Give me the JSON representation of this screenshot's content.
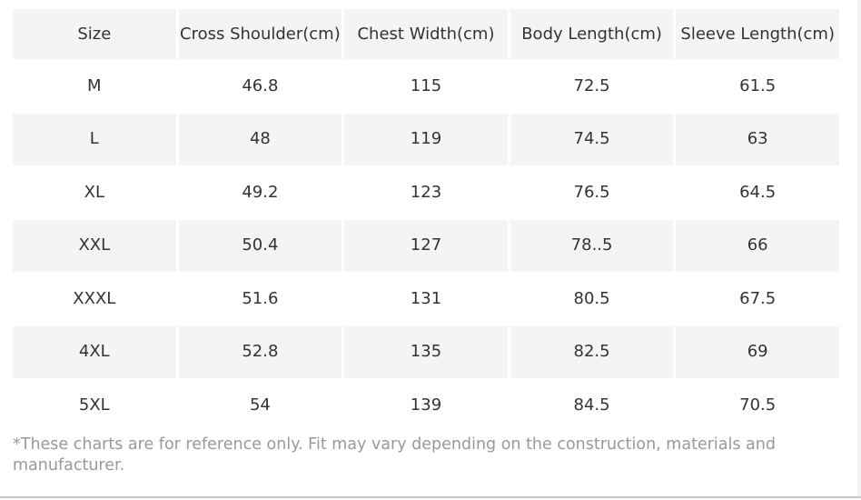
{
  "table": {
    "headers": [
      "Size",
      "Cross Shoulder(cm)",
      "Chest Width(cm)",
      "Body Length(cm)",
      "Sleeve Length(cm)"
    ],
    "rows": [
      [
        "M",
        "46.8",
        "115",
        "72.5",
        "61.5"
      ],
      [
        "L",
        "48",
        "119",
        "74.5",
        "63"
      ],
      [
        "XL",
        "49.2",
        "123",
        "76.5",
        "64.5"
      ],
      [
        "XXL",
        "50.4",
        "127",
        "78..5",
        "66"
      ],
      [
        "XXXL",
        "51.6",
        "131",
        "80.5",
        "67.5"
      ],
      [
        "4XL",
        "52.8",
        "135",
        "82.5",
        "69"
      ],
      [
        "5XL",
        "54",
        "139",
        "84.5",
        "70.5"
      ]
    ]
  },
  "note": "*These charts are for reference only. Fit may vary depending on the construction, materials and manufacturer.",
  "colors": {
    "header_bg": "#f4f4f4",
    "stripe_bg": "#f4f4f4",
    "text": "#333333",
    "note_text": "#999999"
  }
}
